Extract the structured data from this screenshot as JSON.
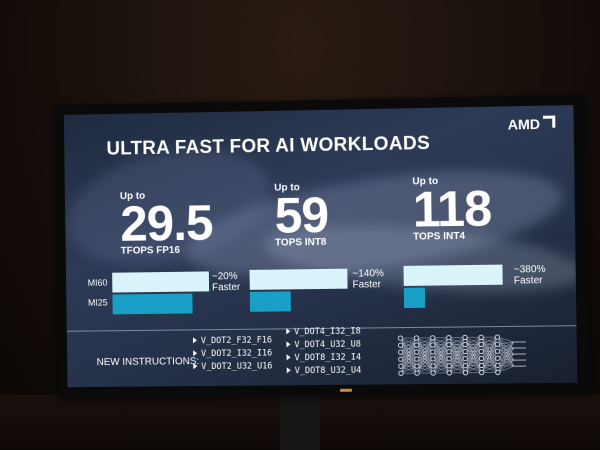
{
  "slide": {
    "brand": "AMD",
    "title": "ULTRA FAST FOR AI WORKLOADS",
    "stats": [
      {
        "upto": "Up to",
        "value": "29.5",
        "unit": "TFOPS FP16",
        "gain": "~20%",
        "faster": "Faster",
        "mi60_fill": 1.0,
        "mi25_fill": 0.83
      },
      {
        "upto": "Up to",
        "value": "59",
        "unit": "TOPS INT8",
        "gain": "~140%",
        "faster": "Faster",
        "mi60_fill": 1.0,
        "mi25_fill": 0.42
      },
      {
        "upto": "Up to",
        "value": "118",
        "unit": "TOPS INT4",
        "gain": "~380%",
        "faster": "Faster",
        "mi60_fill": 1.0,
        "mi25_fill": 0.21
      }
    ],
    "row_labels": {
      "mi60": "MI60",
      "mi25": "MI25"
    },
    "instructions_label": "NEW INSTRUCTIONS:",
    "instructions_col1": [
      "V_DOT2_F32_F16",
      "V_DOT2_I32_I16",
      "V_DOT2_U32_U16"
    ],
    "instructions_col2": [
      "V_DOT4_I32_I8",
      "V_DOT4_U32_U8",
      "V_DOT8_I32_I4",
      "V_DOT8_U32_U4"
    ]
  },
  "colors": {
    "mi60_bar": "#d9f4fb",
    "mi25_bar": "#1aa0c6",
    "background": "#26324a"
  }
}
